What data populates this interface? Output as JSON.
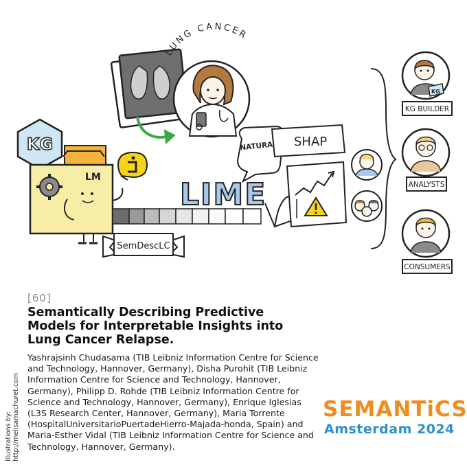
{
  "illustration": {
    "kg_badge": "KG",
    "lm_folder": "LM",
    "lung_cancer_label": "LUNG CANCER",
    "natural_language_label": "NATURAL LANGUAGE",
    "shap_label": "SHAP",
    "lime_label": "LIME",
    "ribbon_label": "SemDescLC",
    "roles": [
      {
        "label": "KG BUILDER",
        "badge": "KG"
      },
      {
        "label": "ANALYSTS"
      },
      {
        "label": "CONSUMERS"
      }
    ]
  },
  "paper": {
    "ref": "[60]",
    "title": "Semantically Describing Predictive Models for Interpretable Insights into Lung Cancer Relapse.",
    "authors": "Yashrajsinh Chudasama (TIB Leibniz Information Centre for Science and Technology, Hannover, Germany), Disha Purohit (TIB Leibniz Information Centre for Science and Technology, Hannover, Germany), Philipp D. Rohde (TIB Leibniz Information Centre for Science and Technology, Hannover, Germany), Enrique Iglesias (L3S Research Center, Hannover, Germany), Maria Torrente  (HospitalUniversitarioPuertadeHierro-Majada-honda, Spain) and Maria-Esther Vidal (TIB Leibniz Information Centre for Science and Technology, Hannover, Germany)."
  },
  "credit": {
    "line1": "Illustrations by:",
    "line2": "http://melisamachuret.com"
  },
  "conference": {
    "name": "SEMANTiCS",
    "city_year": "Amsterdam 2024"
  },
  "colors": {
    "kg_blue": "#cfe6f5",
    "lm_yellow": "#f8eda6",
    "folder_orange": "#f2b43a",
    "arrow_green": "#3aa843",
    "lime_blue": "#a8c8ec",
    "warning_yellow": "#f7d31c",
    "brand_orange": "#f08c1e",
    "brand_blue": "#2c8fcf"
  }
}
